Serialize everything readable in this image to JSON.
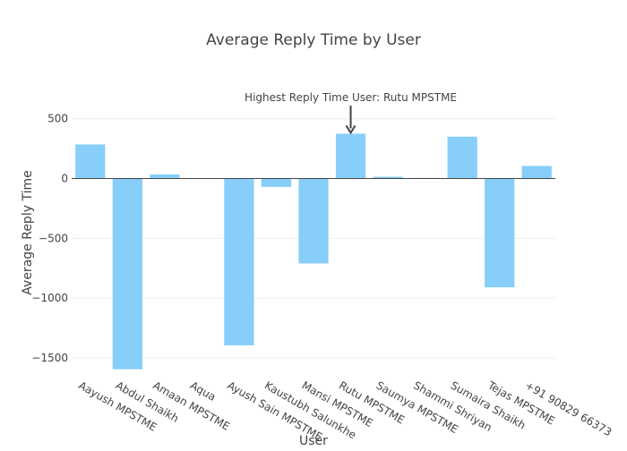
{
  "chart_data": {
    "type": "bar",
    "title": "Average Reply Time by User",
    "xlabel": "User",
    "ylabel": "Average Reply Time",
    "categories": [
      "Aayush MPSTME",
      "Abdul Shaikh",
      "Amaan MPSTME",
      "Aqua",
      "Ayush Sain MPSTME",
      "Kaustubh Salunkhe",
      "Mansi MPSTME",
      "Rutu MPSTME",
      "Saumya MPSTME",
      "Shammi Shriyan",
      "Sumaira  Shaikh",
      "Tejas MPSTME",
      "+91 90829 66373"
    ],
    "values": [
      285,
      -1595,
      35,
      0,
      -1395,
      -70,
      -710,
      375,
      15,
      5,
      350,
      -910,
      105
    ],
    "ylim": [
      -1650,
      580
    ],
    "yticks": [
      500,
      0,
      -500,
      -1000,
      -1500
    ],
    "ytick_labels": [
      "500",
      "0",
      "−500",
      "−1000",
      "−1500"
    ],
    "bar_color": "#87CEFA",
    "grid": true,
    "annotation": {
      "text": "Highest Reply Time User:  Rutu MPSTME",
      "category_index": 7
    }
  }
}
